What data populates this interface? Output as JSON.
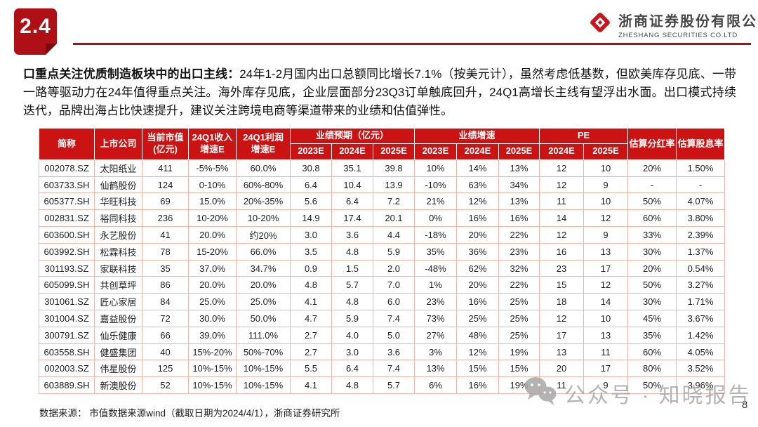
{
  "badge": {
    "label": "2.4"
  },
  "logo": {
    "company_cn": "浙商证券股份有限公司",
    "company_en": "ZHESHANG SECURITIES CO.LTD"
  },
  "paragraph": {
    "lead": "口重点关注优质制造板块中的出口主线：",
    "body": "24年1-2月国内出口总额同比增长7.1%（按美元计），虽然考虑低基数，但欧美库存见底、一带一路等驱动力在24年值得重点关注。海外库存见底，企业层面部分23Q3订单触底回升，24Q1高增长主线有望浮出水面。出口模式持续迭代，品牌出海占比快速提升，建议关注跨境电商等渠道带来的业绩和估值弹性。"
  },
  "table": {
    "group_headers": {
      "forecast": "业绩预期（亿元）",
      "growth": "业绩增速",
      "pe": "PE"
    },
    "columns": {
      "ticker": "简称",
      "company": "上市公司",
      "market_cap": "当前市值\n(亿元)",
      "q1_revenue_growth": "24Q1收入\n增速E",
      "q1_profit_growth": "24Q1利润\n增速E",
      "payout_ratio": "估算分红率",
      "dividend_yield": "估算股息率",
      "y2023e": "2023E",
      "y2024e": "2024E",
      "y2025e": "2025E"
    },
    "rows": [
      [
        "002078.SZ",
        "太阳纸业",
        "411",
        "-5%-5%",
        "60.0%",
        "30.8",
        "35.1",
        "39.8",
        "10%",
        "14%",
        "13%",
        "12",
        "10",
        "20%",
        "1.50%"
      ],
      [
        "603733.SH",
        "仙鹤股份",
        "124",
        "0-10%",
        "60%-80%",
        "6.4",
        "10.4",
        "13.9",
        "-10%",
        "63%",
        "34%",
        "12",
        "9",
        "-",
        "-"
      ],
      [
        "605377.SH",
        "华旺科技",
        "69",
        "15.0%",
        "20%-35%",
        "5.6",
        "6.4",
        "7.2",
        "21%",
        "12%",
        "13%",
        "11",
        "10",
        "50%",
        "4.07%"
      ],
      [
        "002831.SZ",
        "裕同科技",
        "236",
        "10-20%",
        "10-20%",
        "14.9",
        "17.4",
        "20.1",
        "0%",
        "16%",
        "16%",
        "14",
        "12",
        "60%",
        "3.80%"
      ],
      [
        "603600.SH",
        "永艺股份",
        "41",
        "20.0%",
        "约20%",
        "3.0",
        "3.6",
        "4.4",
        "-18%",
        "20%",
        "22%",
        "12",
        "9",
        "33%",
        "2.39%"
      ],
      [
        "603992.SH",
        "松霖科技",
        "78",
        "15-20%",
        "66.0%",
        "3.5",
        "4.8",
        "5.9",
        "35%",
        "36%",
        "23%",
        "16",
        "13",
        "30%",
        "1.37%"
      ],
      [
        "301193.SZ",
        "家联科技",
        "35",
        "37.0%",
        "34.7%",
        "0.9",
        "1.5",
        "2.0",
        "-48%",
        "62%",
        "32%",
        "23",
        "17",
        "20%",
        "0.54%"
      ],
      [
        "605099.SH",
        "共创草坪",
        "86",
        "20.0%",
        "20.0%",
        "4.8",
        "5.7",
        "7.0",
        "1%",
        "20%",
        "22%",
        "15",
        "12",
        "50%",
        "3.27%"
      ],
      [
        "301061.SZ",
        "匠心家居",
        "84",
        "25.0%",
        "25.0%",
        "4.1",
        "4.8",
        "6.0",
        "23%",
        "16%",
        "25%",
        "18",
        "14",
        "30%",
        "1.71%"
      ],
      [
        "301004.SZ",
        "嘉益股份",
        "72",
        "30.0%",
        "50.0%",
        "4.7",
        "5.9",
        "7.4",
        "73%",
        "25%",
        "25%",
        "12",
        "10",
        "45%",
        "3.67%"
      ],
      [
        "300791.SZ",
        "仙乐健康",
        "66",
        "39.0%",
        "111.0%",
        "2.7",
        "4.0",
        "5.0",
        "27%",
        "48%",
        "25%",
        "17",
        "13",
        "35%",
        "1.42%"
      ],
      [
        "603558.SH",
        "健盛集团",
        "40",
        "15%-20%",
        "50%-70%",
        "2.7",
        "3.0",
        "3.6",
        "3%",
        "12%",
        "19%",
        "13",
        "11",
        "60%",
        "4.05%"
      ],
      [
        "002003.SZ",
        "伟星股份",
        "125",
        "10%-15%",
        "10%-15%",
        "5.5",
        "6.4",
        "7.4",
        "13%",
        "15%",
        "15%",
        "20",
        "17",
        "80%",
        "3.52%"
      ],
      [
        "603889.SH",
        "新澳股份",
        "52",
        "10%-15%",
        "10%-15%",
        "4.1",
        "4.8",
        "5.7",
        "6%",
        "16%",
        "19%",
        "11",
        "9",
        "50%",
        "3.96%"
      ]
    ]
  },
  "footer": {
    "source": "数据来源： 市值数据来源wind（截取日期为2024/4/1），浙商证券研究所",
    "page_number": "8"
  },
  "watermark": {
    "text": "公众号 · 知晓报告"
  },
  "colors": {
    "header_red": "#cb1313",
    "accent_red": "#ae1016",
    "table_border_pink": "#f1b5a8",
    "group_separator_dark": "#2b2b2b",
    "watermark_gray": "#a6a6a6"
  }
}
